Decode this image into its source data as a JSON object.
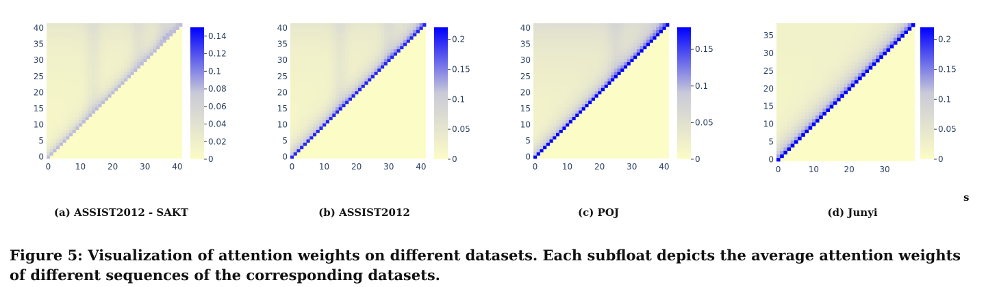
{
  "figure": {
    "caption": "Figure 5: Visualization of attention weights on different datasets. Each subfloat depicts the average attention weights of different sequences of the corresponding datasets.",
    "stray_mark": "s"
  },
  "colors": {
    "low": "#fcfcc6",
    "mid": "#cacad8",
    "high": "#0000ff"
  },
  "chart_data": [
    {
      "type": "heatmap",
      "subcaption": "(a) ASSIST2012 - SAKT",
      "n": 42,
      "x_ticks": [
        0,
        10,
        20,
        30,
        40
      ],
      "y_ticks": [
        0,
        5,
        10,
        15,
        20,
        25,
        30,
        35,
        40
      ],
      "colorbar": {
        "min": 0,
        "max": 0.15,
        "ticks": [
          0,
          0.02,
          0.04,
          0.06,
          0.08,
          0.1,
          0.12,
          0.14
        ]
      },
      "diagonal_weight": 0.08,
      "lower_triangle": 0,
      "stripe_columns": [
        14,
        28,
        36
      ]
    },
    {
      "type": "heatmap",
      "subcaption": "(b) ASSIST2012",
      "n": 42,
      "x_ticks": [
        0,
        10,
        20,
        30,
        40
      ],
      "y_ticks": [
        0,
        5,
        10,
        15,
        20,
        25,
        30,
        35,
        40
      ],
      "colorbar": {
        "min": 0,
        "max": 0.22,
        "ticks": [
          0,
          0.05,
          0.1,
          0.15,
          0.2
        ]
      },
      "diagonal_weight": 0.2,
      "lower_triangle": 0,
      "stripe_columns": [
        15,
        30
      ]
    },
    {
      "type": "heatmap",
      "subcaption": "(c) POJ",
      "n": 42,
      "x_ticks": [
        0,
        10,
        20,
        30,
        40
      ],
      "y_ticks": [
        0,
        5,
        10,
        15,
        20,
        25,
        30,
        35,
        40
      ],
      "colorbar": {
        "min": 0,
        "max": 0.18,
        "ticks": [
          0,
          0.05,
          0.1,
          0.15
        ]
      },
      "diagonal_weight": 0.18,
      "lower_triangle": 0,
      "stripe_columns": [
        25
      ]
    },
    {
      "type": "heatmap",
      "subcaption": "(d) Junyi",
      "n": 39,
      "x_ticks": [
        0,
        10,
        20,
        30
      ],
      "y_ticks": [
        0,
        5,
        10,
        15,
        20,
        25,
        30,
        35
      ],
      "colorbar": {
        "min": 0,
        "max": 0.22,
        "ticks": [
          0,
          0.05,
          0.1,
          0.15,
          0.2
        ]
      },
      "diagonal_weight": 0.22,
      "lower_triangle": 0,
      "stripe_columns": []
    }
  ]
}
